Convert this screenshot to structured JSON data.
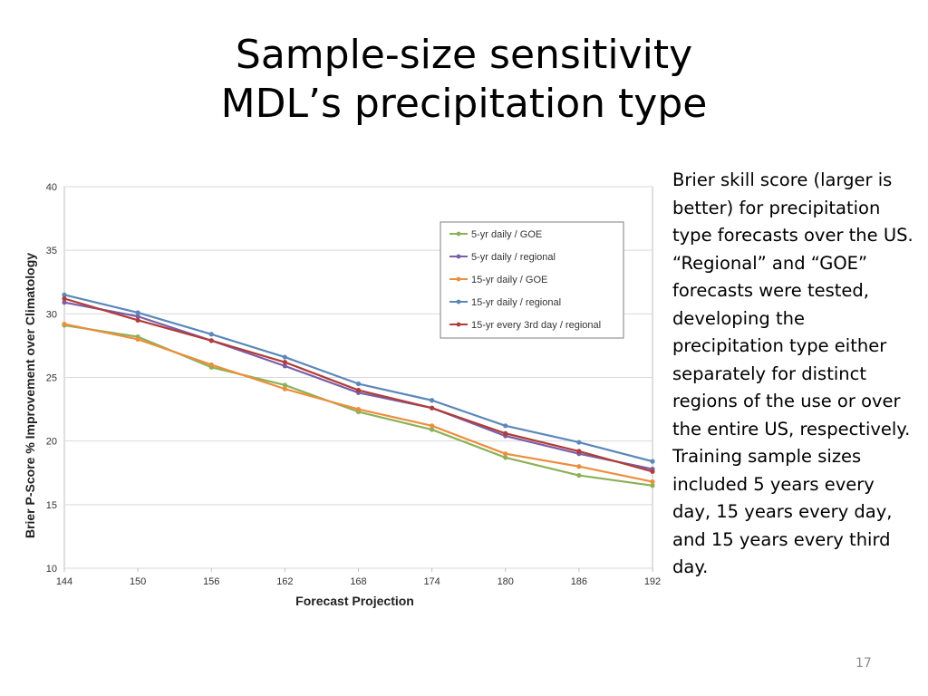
{
  "slide": {
    "title_line1": "Sample-size sensitivity",
    "title_line2": "MDL’s precipitation type",
    "description": "Brier skill score (larger is better) for precipitation type forecasts over the US.  “Regional” and “GOE” forecasts were tested, developing the precipitation type either separately for distinct regions of the use or over the entire US, respectively.  Training sample sizes included 5 years every day, 15 years every day, and 15 years every third day.",
    "page_number": "17"
  },
  "chart_data": {
    "type": "line",
    "title": "",
    "xlabel": "Forecast Projection",
    "ylabel": "Brier P-Score % Improvement over Climatology",
    "x": [
      144,
      150,
      156,
      162,
      168,
      174,
      180,
      186,
      192
    ],
    "xlim": [
      144,
      192
    ],
    "ylim": [
      10,
      40
    ],
    "yticks": [
      10,
      15,
      20,
      25,
      30,
      35,
      40
    ],
    "grid": true,
    "legend_position": "top-right",
    "series": [
      {
        "name": "5-yr daily / GOE",
        "color": "#8bb157",
        "values": [
          29.1,
          28.2,
          25.8,
          24.4,
          22.3,
          20.9,
          18.7,
          17.3,
          16.5
        ]
      },
      {
        "name": "5-yr daily / regional",
        "color": "#7b5ea7",
        "values": [
          30.9,
          29.8,
          27.9,
          25.9,
          23.8,
          22.6,
          20.4,
          19.0,
          17.8
        ]
      },
      {
        "name": "15-yr daily / GOE",
        "color": "#ec8e3c",
        "values": [
          29.2,
          28.0,
          26.0,
          24.1,
          22.5,
          21.2,
          19.0,
          18.0,
          16.8
        ]
      },
      {
        "name": "15-yr daily / regional",
        "color": "#5b87b9",
        "values": [
          31.5,
          30.1,
          28.4,
          26.6,
          24.5,
          23.2,
          21.2,
          19.9,
          18.4
        ]
      },
      {
        "name": "15-yr every 3rd day / regional",
        "color": "#b13c38",
        "values": [
          31.2,
          29.5,
          27.9,
          26.2,
          24.0,
          22.6,
          20.6,
          19.2,
          17.6
        ]
      }
    ]
  }
}
